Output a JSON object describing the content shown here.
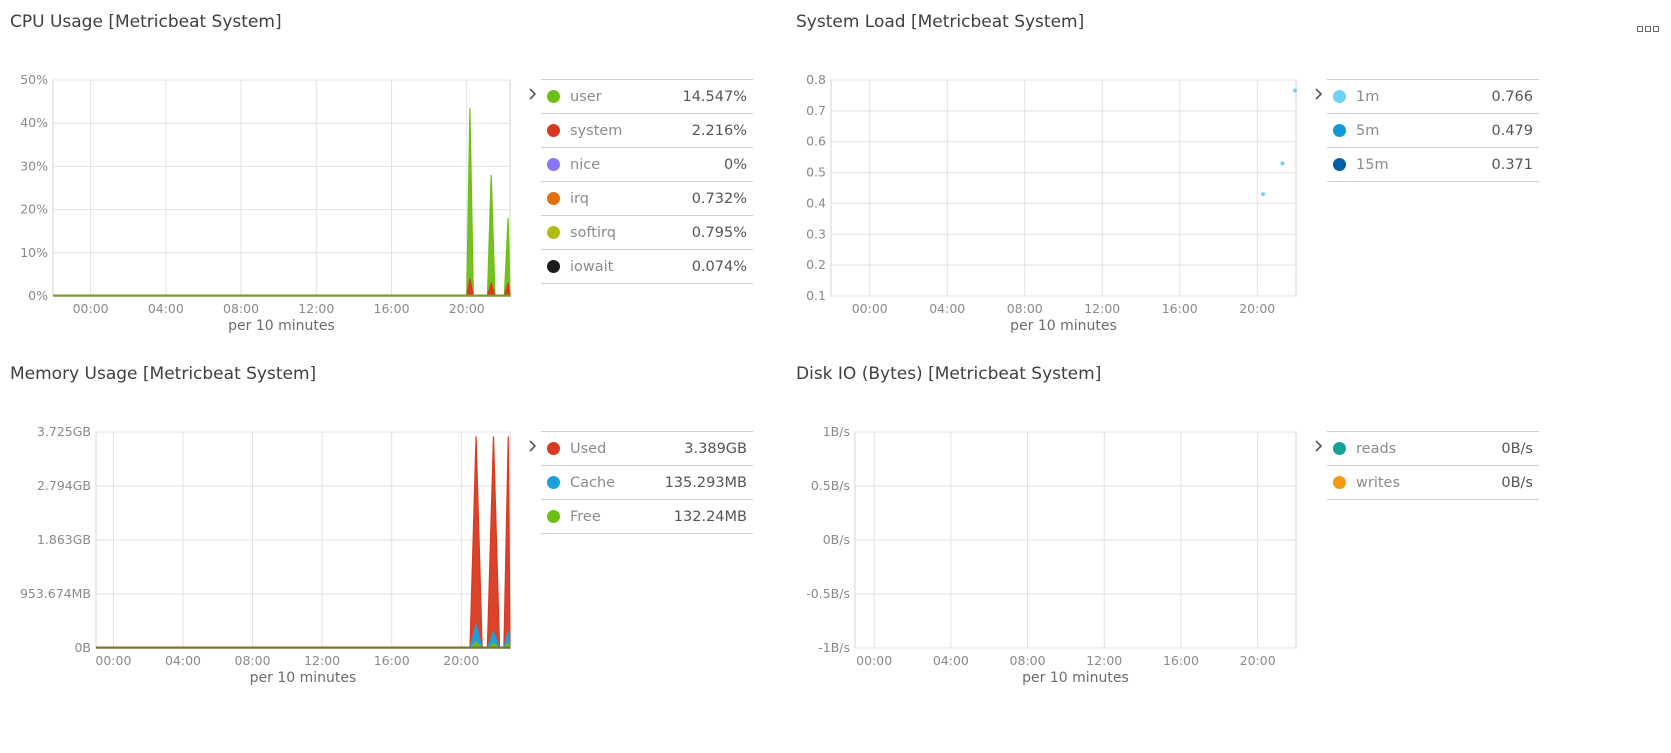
{
  "menu_icon": "options-menu-icon",
  "colors": {
    "user": "#6bbf14",
    "system": "#d9391f",
    "nice": "#8b74f5",
    "irq": "#e0700d",
    "softirq": "#b0bb15",
    "iowait": "#1b1b1b",
    "load1": "#6fd3f5",
    "load5": "#1098d9",
    "load15": "#0660a8",
    "used": "#d9391f",
    "cache": "#1ba0e0",
    "free": "#6bbf14",
    "reads": "#16a198",
    "writes": "#f59a12"
  },
  "panels": {
    "cpu": {
      "title": "CPU Usage [Metricbeat System]",
      "legend": [
        {
          "name": "user",
          "value": "14.547%"
        },
        {
          "name": "system",
          "value": "2.216%"
        },
        {
          "name": "nice",
          "value": "0%"
        },
        {
          "name": "irq",
          "value": "0.732%"
        },
        {
          "name": "softirq",
          "value": "0.795%"
        },
        {
          "name": "iowait",
          "value": "0.074%"
        }
      ]
    },
    "load": {
      "title": "System Load [Metricbeat System]",
      "legend": [
        {
          "name": "1m",
          "value": "0.766"
        },
        {
          "name": "5m",
          "value": "0.479"
        },
        {
          "name": "15m",
          "value": "0.371"
        }
      ]
    },
    "memory": {
      "title": "Memory Usage [Metricbeat System]",
      "legend": [
        {
          "name": "Used",
          "value": "3.389GB"
        },
        {
          "name": "Cache",
          "value": "135.293MB"
        },
        {
          "name": "Free",
          "value": "132.24MB"
        }
      ]
    },
    "disk": {
      "title": "Disk IO (Bytes) [Metricbeat System]",
      "legend": [
        {
          "name": "reads",
          "value": "0B/s"
        },
        {
          "name": "writes",
          "value": "0B/s"
        }
      ]
    }
  },
  "chart_data": [
    {
      "id": "cpu",
      "type": "area",
      "title": "CPU Usage [Metricbeat System]",
      "xlabel": "per 10 minutes",
      "ylabel": "",
      "xlim": [
        -2,
        22.3
      ],
      "ylim": [
        0,
        50
      ],
      "yticks": [
        0,
        10,
        20,
        30,
        40,
        50
      ],
      "ytick_labels": [
        "0%",
        "10%",
        "20%",
        "30%",
        "40%",
        "50%"
      ],
      "xticks": [
        0,
        4,
        8,
        12,
        16,
        20
      ],
      "xtick_labels": [
        "00:00",
        "04:00",
        "08:00",
        "12:00",
        "16:00",
        "20:00"
      ],
      "grid": true,
      "series": [
        {
          "name": "user",
          "x": [
            -2,
            20.0,
            20.17,
            20.35,
            21.1,
            21.3,
            21.5,
            22.0,
            22.2,
            22.3
          ],
          "values": [
            0,
            0,
            43.5,
            0,
            0,
            28,
            0,
            0,
            18,
            0
          ]
        },
        {
          "name": "system",
          "x": [
            -2,
            20.0,
            20.17,
            20.35,
            21.1,
            21.3,
            21.5,
            22.0,
            22.2,
            22.3
          ],
          "values": [
            0,
            0,
            4,
            0,
            0,
            3,
            0,
            0,
            3,
            0
          ]
        }
      ]
    },
    {
      "id": "load",
      "type": "scatter",
      "title": "System Load [Metricbeat System]",
      "xlabel": "per 10 minutes",
      "ylabel": "",
      "xlim": [
        -2,
        22
      ],
      "ylim": [
        0.1,
        0.8
      ],
      "yticks": [
        0.1,
        0.2,
        0.3,
        0.4,
        0.5,
        0.6,
        0.7,
        0.8
      ],
      "ytick_labels": [
        "0.1",
        "0.2",
        "0.3",
        "0.4",
        "0.5",
        "0.6",
        "0.7",
        "0.8"
      ],
      "xticks": [
        0,
        4,
        8,
        12,
        16,
        20
      ],
      "xtick_labels": [
        "00:00",
        "04:00",
        "08:00",
        "12:00",
        "16:00",
        "20:00"
      ],
      "grid": true,
      "series": [
        {
          "name": "1m",
          "x": [
            20.3,
            21.3,
            21.95
          ],
          "values": [
            0.43,
            0.53,
            0.766
          ]
        }
      ]
    },
    {
      "id": "memory",
      "type": "area",
      "title": "Memory Usage [Metricbeat System]",
      "xlabel": "per 10 minutes",
      "ylabel": "",
      "xlim": [
        -1,
        22.8
      ],
      "ylim": [
        0,
        3.725
      ],
      "yticks": [
        0,
        0.931,
        1.863,
        2.794,
        3.725
      ],
      "ytick_labels": [
        "0B",
        "953.674MB",
        "1.863GB",
        "2.794GB",
        "3.725GB"
      ],
      "xticks": [
        0,
        4,
        8,
        12,
        16,
        20
      ],
      "xtick_labels": [
        "00:00",
        "04:00",
        "08:00",
        "12:00",
        "16:00",
        "20:00"
      ],
      "grid": true,
      "series": [
        {
          "name": "Used",
          "x": [
            -1,
            20.5,
            20.85,
            21.2,
            21.5,
            21.85,
            22.2,
            22.45,
            22.7,
            22.8
          ],
          "values": [
            0,
            0,
            3.65,
            0,
            0,
            3.65,
            0,
            0,
            3.65,
            0
          ]
        },
        {
          "name": "Cache",
          "x": [
            -1,
            20.5,
            20.85,
            21.2,
            21.5,
            21.85,
            22.2,
            22.45,
            22.7,
            22.8
          ],
          "values": [
            0,
            0,
            0.4,
            0,
            0,
            0.28,
            0,
            0,
            0.28,
            0
          ]
        },
        {
          "name": "Free",
          "x": [
            -1,
            20.5,
            20.85,
            21.2,
            21.5,
            21.85,
            22.2,
            22.45,
            22.7,
            22.8
          ],
          "values": [
            0,
            0,
            0.1,
            0,
            0,
            0.08,
            0,
            0,
            0.08,
            0
          ]
        }
      ]
    },
    {
      "id": "disk",
      "type": "line",
      "title": "Disk IO (Bytes) [Metricbeat System]",
      "xlabel": "per 10 minutes",
      "ylabel": "",
      "xlim": [
        -1,
        22
      ],
      "ylim": [
        -1,
        1
      ],
      "yticks": [
        -1,
        -0.5,
        0,
        0.5,
        1
      ],
      "ytick_labels": [
        "-1B/s",
        "-0.5B/s",
        "0B/s",
        "0.5B/s",
        "1B/s"
      ],
      "xticks": [
        0,
        4,
        8,
        12,
        16,
        20
      ],
      "xtick_labels": [
        "00:00",
        "04:00",
        "08:00",
        "12:00",
        "16:00",
        "20:00"
      ],
      "grid": true,
      "series": []
    }
  ]
}
